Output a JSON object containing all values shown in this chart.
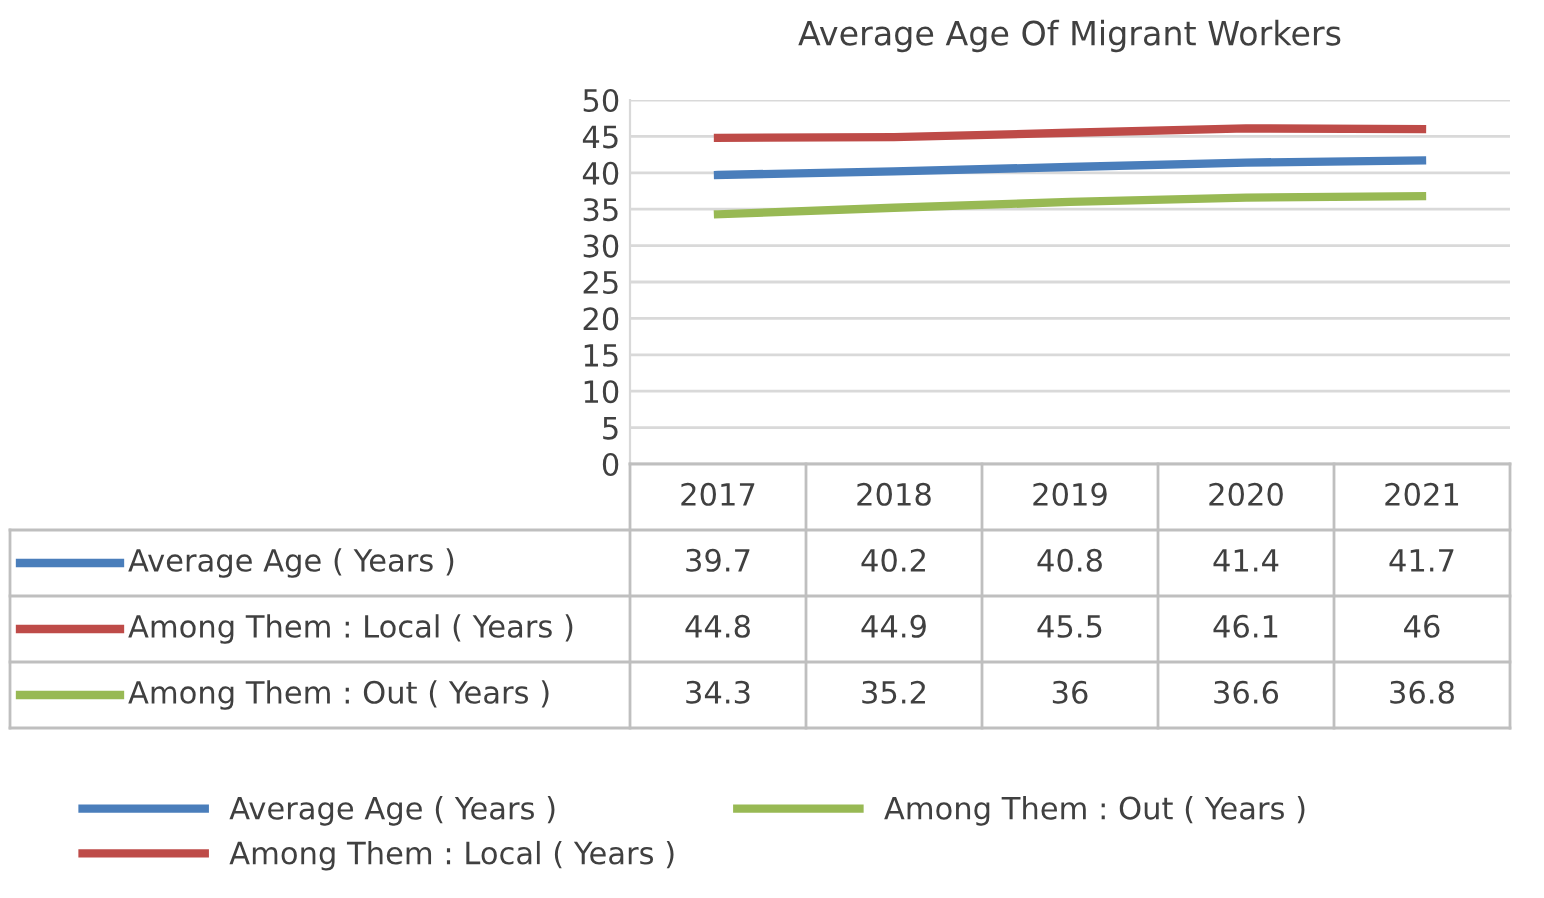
{
  "chart_data": {
    "type": "line",
    "title": "Average Age Of Migrant Workers",
    "categories": [
      "2017",
      "2018",
      "2019",
      "2020",
      "2021"
    ],
    "series": [
      {
        "name": "Average Age ( Years )",
        "color": "#4a7ebb",
        "values": [
          39.7,
          40.2,
          40.8,
          41.4,
          41.7
        ]
      },
      {
        "name": "Among Them : Local ( Years )",
        "color": "#be4b48",
        "values": [
          44.8,
          44.9,
          45.5,
          46.1,
          46
        ]
      },
      {
        "name": "Among Them : Out ( Years )",
        "color": "#98b954",
        "values": [
          34.3,
          35.2,
          36,
          36.6,
          36.8
        ]
      }
    ],
    "ylim": [
      0,
      50
    ],
    "yticks": [
      0,
      5,
      10,
      15,
      20,
      25,
      30,
      35,
      40,
      45,
      50
    ],
    "grid": "y",
    "legend": "bottom",
    "data_labels": true,
    "marker": "none",
    "line_style": "solid"
  }
}
